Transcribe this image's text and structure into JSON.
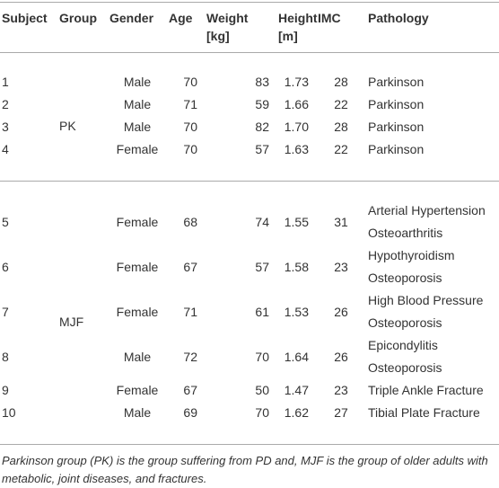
{
  "table": {
    "header": [
      [
        "Subject"
      ],
      [
        "Group"
      ],
      [
        "Gender"
      ],
      [
        "Age"
      ],
      [
        "Weight",
        "[kg]"
      ],
      [
        "Height",
        "[m]"
      ],
      [
        "IMC"
      ],
      [
        "Pathology"
      ]
    ],
    "groups": [
      {
        "name": "PK",
        "rows": [
          [
            "1",
            "Male",
            "70",
            "83",
            "1.73",
            "28",
            [
              "Parkinson"
            ]
          ],
          [
            "2",
            "Male",
            "71",
            "59",
            "1.66",
            "22",
            [
              "Parkinson"
            ]
          ],
          [
            "3",
            "Male",
            "70",
            "82",
            "1.70",
            "28",
            [
              "Parkinson"
            ]
          ],
          [
            "4",
            "Female",
            "70",
            "57",
            "1.63",
            "22",
            [
              "Parkinson"
            ]
          ]
        ]
      },
      {
        "name": "MJF",
        "rows": [
          [
            "5",
            "Female",
            "68",
            "74",
            "1.55",
            "31",
            [
              "Arterial Hypertension",
              "Osteoarthritis"
            ]
          ],
          [
            "6",
            "Female",
            "67",
            "57",
            "1.58",
            "23",
            [
              "Hypothyroidism",
              "Osteoporosis"
            ]
          ],
          [
            "7",
            "Female",
            "71",
            "61",
            "1.53",
            "26",
            [
              "High Blood Pressure",
              "Osteoporosis"
            ]
          ],
          [
            "8",
            "Male",
            "72",
            "70",
            "1.64",
            "26",
            [
              "Epicondylitis",
              "Osteoporosis"
            ]
          ],
          [
            "9",
            "Female",
            "67",
            "50",
            "1.47",
            "23",
            [
              "Triple Ankle Fracture"
            ]
          ],
          [
            "10",
            "Male",
            "69",
            "70",
            "1.62",
            "27",
            [
              "Tibial Plate Fracture"
            ]
          ]
        ]
      }
    ]
  },
  "footnote": "Parkinson group (PK) is the group suffering from PD and, MJF is the group of older adults with metabolic, joint diseases, and fractures."
}
